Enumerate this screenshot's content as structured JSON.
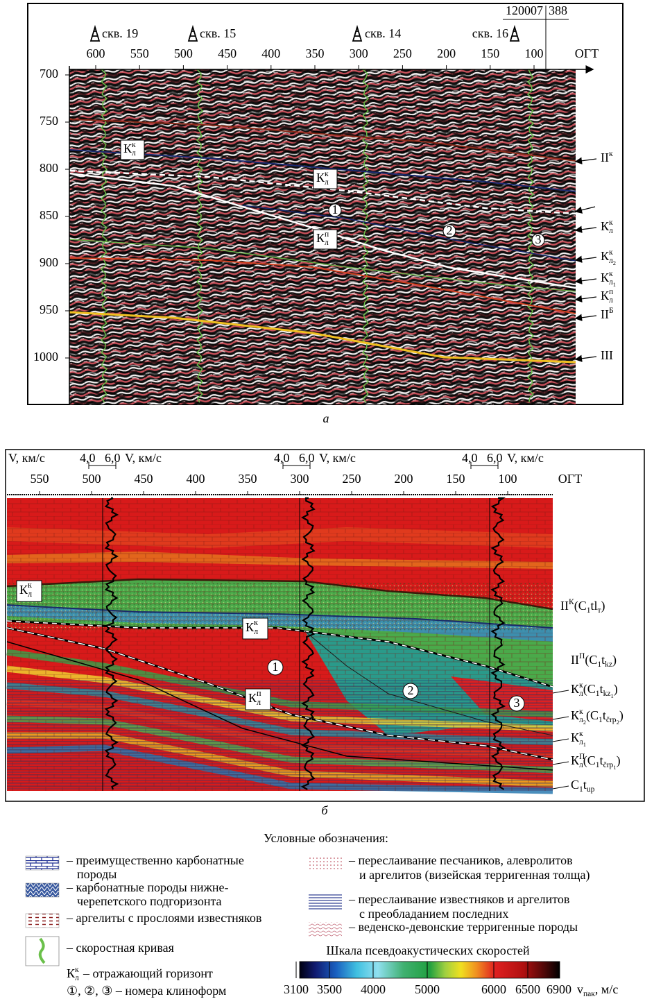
{
  "panel_a": {
    "line_id": "120007",
    "line_cdp": 388,
    "wells": [
      "скв. 19",
      "скв. 15",
      "скв. 14",
      "скв. 16"
    ],
    "x_ticks": [
      600,
      550,
      500,
      450,
      400,
      350,
      300,
      250,
      200,
      150,
      100
    ],
    "x_axis_label": "ОГТ",
    "y_ticks": [
      700,
      750,
      800,
      850,
      900,
      950,
      1000
    ],
    "horizon_labels": [
      [
        {
          "text": "II",
          "sup": "к"
        }
      ],
      [
        {
          "text": "К",
          "sup": "к",
          "sub": "л"
        }
      ],
      [
        {
          "text": "К",
          "sup": "к",
          "sub": "л",
          "subsub": "2"
        }
      ],
      [
        {
          "text": "К",
          "sup": "к",
          "sub": "л",
          "subsub": "1"
        }
      ],
      [
        {
          "text": "К",
          "sup": "п",
          "sub": "л"
        }
      ],
      [
        {
          "text": "II",
          "sup": "Б"
        }
      ],
      [
        {
          "text": "III"
        }
      ]
    ],
    "inline_labels": [
      [
        {
          "text": "К",
          "sup": "к",
          "sub": "л"
        }
      ],
      [
        {
          "text": "К",
          "sup": "к",
          "sub": "л"
        }
      ],
      [
        {
          "text": "К",
          "sup": "п",
          "sub": "л"
        }
      ]
    ],
    "clinoforms": [
      1,
      2,
      3
    ],
    "caption": "а"
  },
  "panel_b": {
    "velocity_axis_label": "V, км/с",
    "velocity_curves": [
      {
        "min": "4,0",
        "max": "6,0",
        "label": "V, км/с"
      },
      {
        "min": "4,0",
        "max": "6,0",
        "label": "V, км/с"
      },
      {
        "min": "4,0",
        "max": "6,0",
        "label": "V, км/с"
      }
    ],
    "x_ticks": [
      550,
      500,
      450,
      400,
      350,
      300,
      250,
      200,
      150,
      100
    ],
    "x_axis_label": "ОГТ",
    "horizon_labels": [
      [
        {
          "text": "II",
          "sup": "К"
        },
        {
          "text": "(C",
          "sub": "1"
        },
        {
          "text": "tl",
          "sub": "т"
        },
        {
          "text": ")"
        }
      ],
      [
        {
          "text": "II",
          "sup": "П"
        },
        {
          "text": "(C",
          "sub": "1"
        },
        {
          "text": "t",
          "sub": "kz"
        },
        {
          "text": ")"
        }
      ],
      [
        {
          "text": "К",
          "sup": "к",
          "sub": "л"
        },
        {
          "text": "(C",
          "sub": "1"
        },
        {
          "text": "t",
          "sub": "kz",
          "subsub": "1"
        },
        {
          "text": ")"
        }
      ],
      [
        {
          "text": "К",
          "sup": "к",
          "sub": "л",
          "subsub": "2"
        },
        {
          "text": "(C",
          "sub": "1"
        },
        {
          "text": "t",
          "sub": "črp",
          "subsub": "2"
        },
        {
          "text": ")"
        }
      ],
      [
        {
          "text": "К",
          "sup": "к",
          "sub": "л",
          "subsub": "1"
        }
      ],
      [
        {
          "text": "К",
          "sup": "П",
          "sub": "л"
        },
        {
          "text": "(C",
          "sub": "1"
        },
        {
          "text": "t",
          "sub": "črp",
          "subsub": "1"
        },
        {
          "text": ")"
        }
      ],
      [
        {
          "text": "C",
          "sub": "1"
        },
        {
          "text": "t",
          "sub": "up"
        }
      ]
    ],
    "inline_labels": [
      [
        {
          "text": "К",
          "sup": "к",
          "sub": "л"
        }
      ],
      [
        {
          "text": "К",
          "sup": "к",
          "sub": "л"
        }
      ],
      [
        {
          "text": "К",
          "sup": "п",
          "sub": "л"
        }
      ]
    ],
    "clinoforms": [
      1,
      2,
      3
    ],
    "caption": "б"
  },
  "legend": {
    "title": "Условные обозначения:",
    "left_items": [
      [
        "– преимущественно карбонатные",
        "породы"
      ],
      [
        "– карбонатные породы нижне-",
        "черепетского подгоризонта"
      ],
      [
        "– аргелиты с прослоями известняков"
      ],
      [
        "– скоростная кривая"
      ]
    ],
    "horizon_symbol": [
      {
        "text": "К",
        "sup": "к",
        "sub": "л"
      }
    ],
    "horizon_text": "– отражающий горизонт",
    "clinoform_text": "①, ②, ③ – номера клиноформ",
    "right_items": [
      [
        "– переслаивание песчаников, алевролитов",
        "и аргелитов (визейская терригенная толща)"
      ],
      [
        "– переслаивание известняков и аргелитов",
        "с преобладанием последних"
      ],
      [
        "– веденско-девонские терригенные породы"
      ]
    ],
    "scale": {
      "title": "Шкала псевдоакустических скоростей",
      "ticks": [
        3100,
        3500,
        4000,
        5000,
        6000,
        6500,
        6900
      ],
      "unit": [
        {
          "text": "v",
          "sub": "пак"
        },
        {
          "text": ", м/с"
        }
      ]
    }
  }
}
